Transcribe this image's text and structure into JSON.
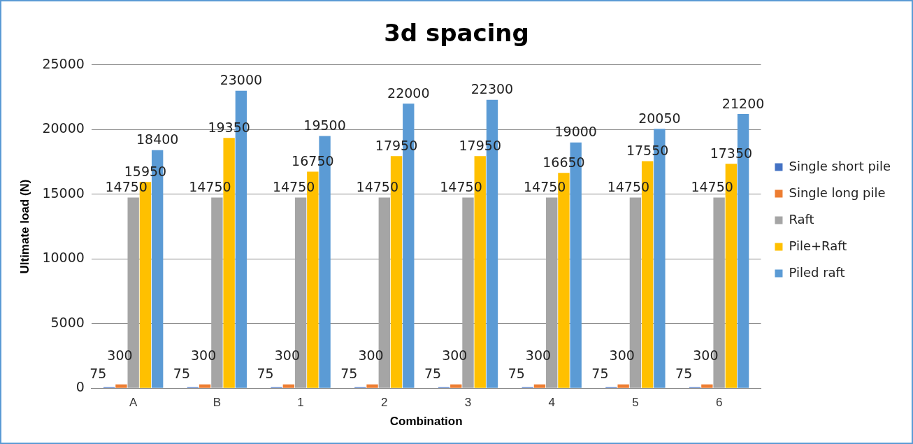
{
  "chart_data": {
    "type": "bar",
    "title": "3d spacing",
    "xlabel": "Combination",
    "ylabel": "Ultimate load (N)",
    "categories": [
      "A",
      "B",
      "1",
      "2",
      "3",
      "4",
      "5",
      "6"
    ],
    "series": [
      {
        "name": "Single short pile",
        "color": "#4472c4",
        "values": [
          75,
          75,
          75,
          75,
          75,
          75,
          75,
          75
        ]
      },
      {
        "name": "Single long pile",
        "color": "#ed7d31",
        "values": [
          300,
          300,
          300,
          300,
          300,
          300,
          300,
          300
        ]
      },
      {
        "name": "Raft",
        "color": "#a5a5a5",
        "values": [
          14750,
          14750,
          14750,
          14750,
          14750,
          14750,
          14750,
          14750
        ]
      },
      {
        "name": "Pile+Raft",
        "color": "#ffc000",
        "values": [
          15950,
          19350,
          16750,
          17950,
          17950,
          16650,
          17550,
          17350
        ]
      },
      {
        "name": "Piled raft",
        "color": "#5b9bd5",
        "values": [
          18400,
          23000,
          19500,
          22000,
          22300,
          19000,
          20050,
          21200
        ]
      }
    ],
    "ylim": [
      0,
      25000
    ],
    "yticks": [
      0,
      5000,
      10000,
      15000,
      20000,
      25000
    ],
    "grid": "y",
    "legend": "right",
    "data_labels": true
  }
}
